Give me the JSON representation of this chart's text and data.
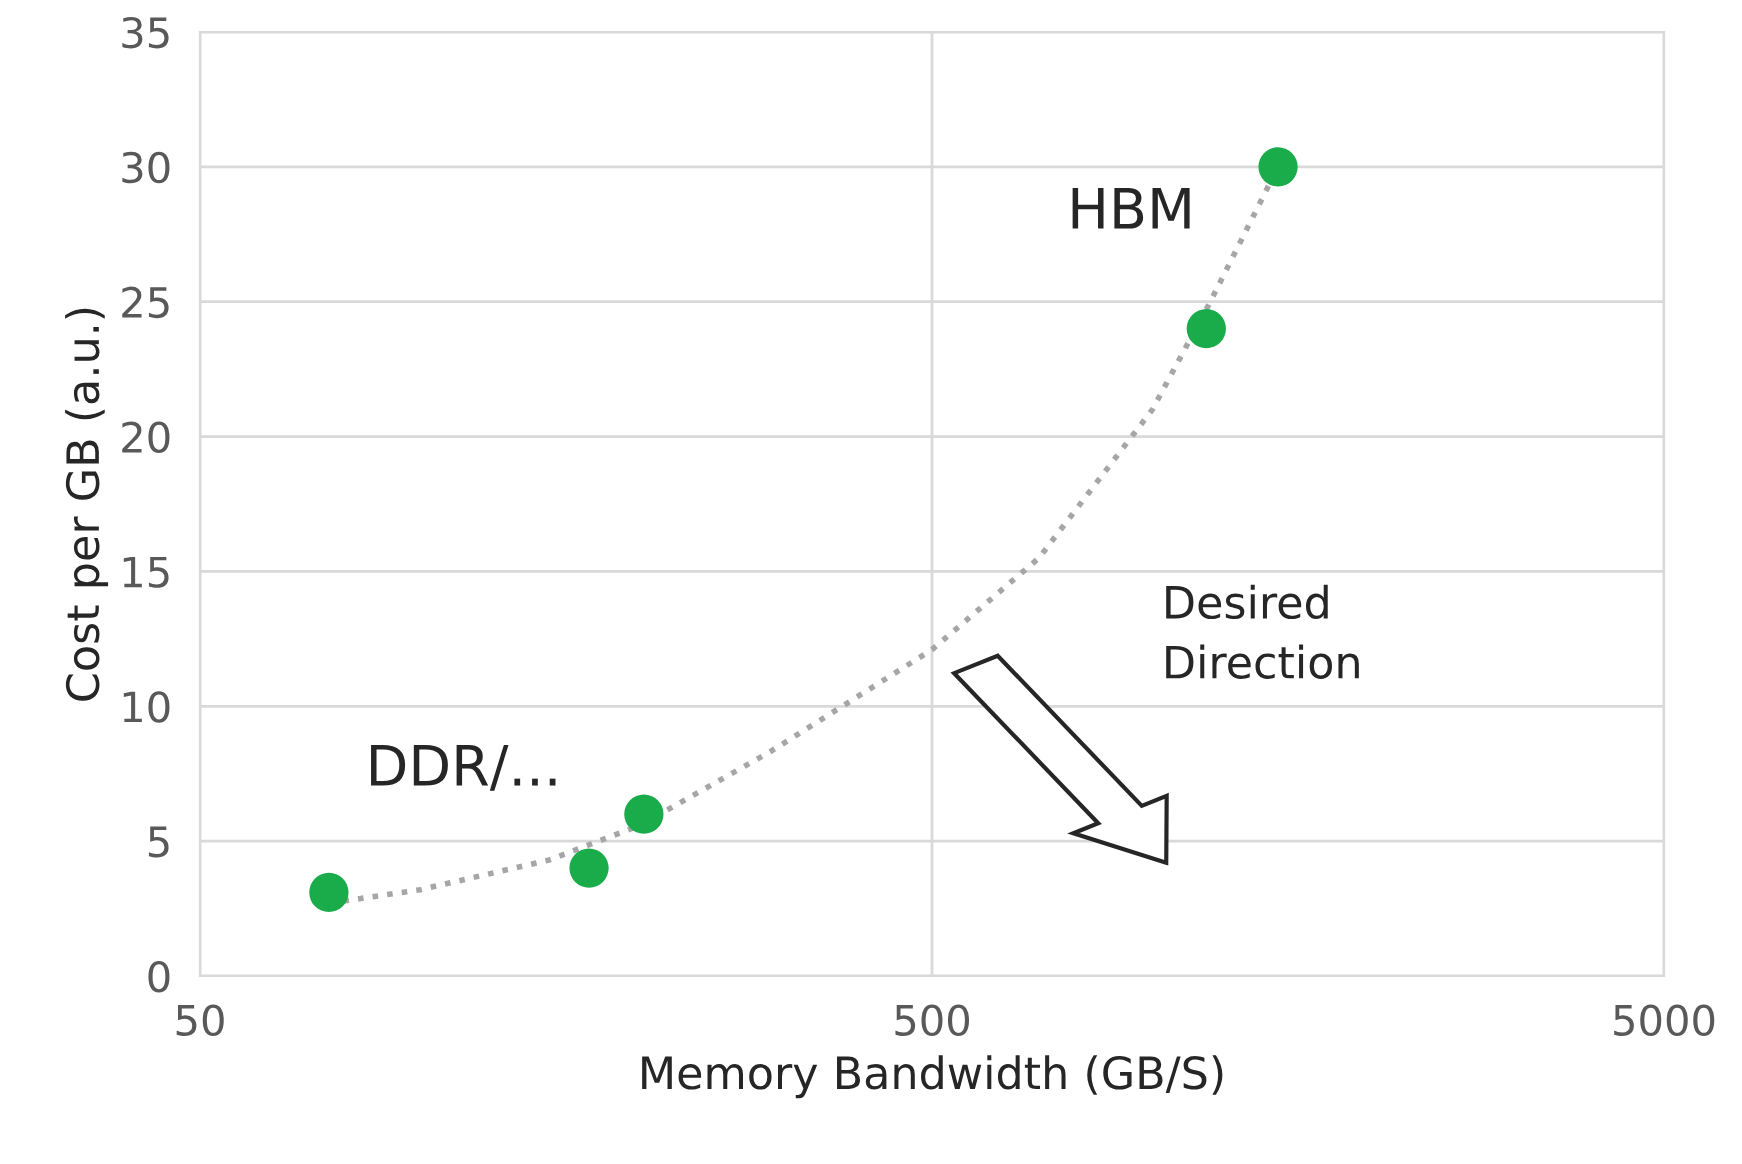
{
  "chart_data": {
    "type": "scatter",
    "xlabel": "Memory Bandwidth (GB/S)",
    "ylabel": "Cost per GB (a.u.)",
    "log": "x",
    "xlim": [
      50,
      5000
    ],
    "xticks": [
      50,
      500,
      5000
    ],
    "ylim": [
      0,
      35
    ],
    "yticks": [
      0,
      5,
      10,
      15,
      20,
      25,
      30,
      35
    ],
    "grid": true,
    "marker": "circle",
    "series": [
      {
        "color": "#1aab4b",
        "x": [
          75,
          170,
          202,
          1185,
          1485
        ],
        "values": [
          3.1,
          4,
          6,
          24,
          30
        ]
      },
      {
        "type": "line",
        "color": "#a6a6a6",
        "line_style": "dotted",
        "marker": "none",
        "x": [
          75,
          100,
          150,
          200,
          300,
          500,
          700,
          1000,
          1200,
          1485
        ],
        "values": [
          2.7,
          3.2,
          4.3,
          5.6,
          8.3,
          12.1,
          15.5,
          21,
          25,
          30
        ]
      }
    ],
    "annotations": [
      "HBM",
      "DDR/...",
      "Desired\nDirection"
    ]
  }
}
